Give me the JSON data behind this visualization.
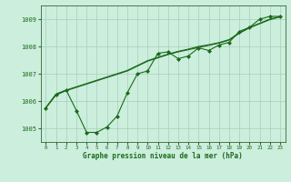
{
  "title": "Graphe pression niveau de la mer (hPa)",
  "bg_color": "#cceedd",
  "grid_color": "#aaccbb",
  "line_color": "#1a6b1a",
  "marker_color": "#1a6b1a",
  "xlim": [
    -0.5,
    23.5
  ],
  "ylim": [
    1004.5,
    1009.5
  ],
  "yticks": [
    1005,
    1006,
    1007,
    1008,
    1009
  ],
  "xticks": [
    0,
    1,
    2,
    3,
    4,
    5,
    6,
    7,
    8,
    9,
    10,
    11,
    12,
    13,
    14,
    15,
    16,
    17,
    18,
    19,
    20,
    21,
    22,
    23
  ],
  "series1": [
    1005.75,
    1006.25,
    1006.4,
    1005.65,
    1004.85,
    1004.85,
    1005.05,
    1005.45,
    1006.3,
    1007.0,
    1007.1,
    1007.75,
    1007.8,
    1007.55,
    1007.65,
    1007.95,
    1007.85,
    1008.05,
    1008.15,
    1008.55,
    1008.7,
    1009.0,
    1009.1,
    1009.1
  ],
  "series2": [
    1005.75,
    1006.25,
    1006.4,
    1006.52,
    1006.64,
    1006.76,
    1006.88,
    1007.0,
    1007.12,
    1007.3,
    1007.48,
    1007.6,
    1007.72,
    1007.82,
    1007.9,
    1008.0,
    1008.06,
    1008.14,
    1008.25,
    1008.5,
    1008.7,
    1008.85,
    1009.0,
    1009.1
  ],
  "series3": [
    1005.75,
    1006.22,
    1006.38,
    1006.5,
    1006.62,
    1006.74,
    1006.86,
    1006.98,
    1007.1,
    1007.28,
    1007.46,
    1007.58,
    1007.7,
    1007.8,
    1007.88,
    1007.96,
    1008.04,
    1008.12,
    1008.23,
    1008.48,
    1008.68,
    1008.83,
    1008.98,
    1009.08
  ],
  "xlabel_fontsize": 5.5,
  "ytick_fontsize": 5.0,
  "xtick_fontsize": 4.2
}
